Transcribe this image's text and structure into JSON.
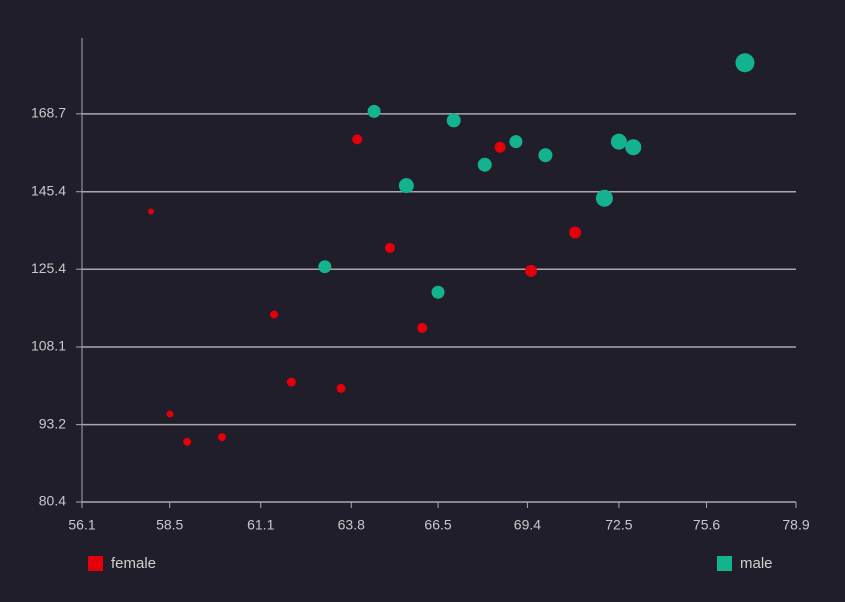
{
  "chart_data": {
    "type": "scatter",
    "xlim": [
      56.1,
      78.9
    ],
    "xticks": [
      56.1,
      58.5,
      61.1,
      63.8,
      66.5,
      69.4,
      72.5,
      75.6,
      78.9
    ],
    "ylim": [
      80.4,
      195
    ],
    "yticks": [
      80.4,
      93.2,
      108.1,
      125.4,
      145.4,
      168.7
    ],
    "xlog": true,
    "ylog": true,
    "grid": true,
    "series": [
      {
        "name": "female",
        "color": "#e3000b",
        "x": [
          57.98,
          58.51,
          58.99,
          59.98,
          61.49,
          62.0,
          63.49,
          63.98,
          64.99,
          66.0,
          68.5,
          69.52,
          71.0
        ],
        "values": [
          140.0,
          95.1,
          90.2,
          91.0,
          115.0,
          101.1,
          99.9,
          160.7,
          130.6,
          112.1,
          158.3,
          125.0,
          134.5
        ],
        "sizes": [
          3,
          3.5,
          4,
          4,
          4,
          4.5,
          4.5,
          5,
          5,
          5,
          5.5,
          6,
          6
        ]
      },
      {
        "name": "male",
        "color": "#13b38f",
        "x": [
          63.0,
          64.5,
          65.5,
          66.5,
          67.0,
          68.0,
          69.02,
          70.0,
          72.0,
          72.5,
          73.0,
          77.0
        ],
        "values": [
          126.0,
          169.5,
          147.1,
          120.0,
          166.6,
          153.1,
          160.0,
          155.9,
          143.6,
          160.0,
          158.3,
          186.0
        ],
        "sizes": [
          6.5,
          6.5,
          7.5,
          6.5,
          7,
          7,
          6.5,
          7,
          8.5,
          8,
          8,
          9.5
        ]
      }
    ]
  }
}
